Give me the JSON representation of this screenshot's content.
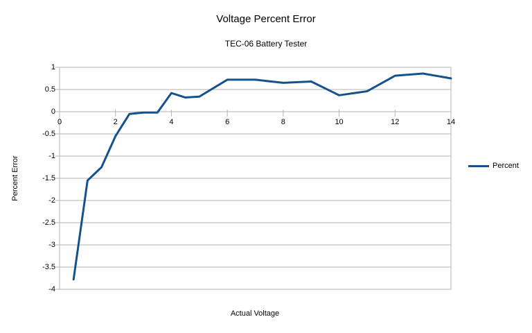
{
  "chart_data": {
    "type": "line",
    "title": "Voltage Percent Error",
    "subtitle": "TEC-06 Battery Tester",
    "xlabel": "Actual Voltage",
    "ylabel": "Percent Error",
    "xlim": [
      0,
      14
    ],
    "ylim": [
      -4,
      1
    ],
    "grid": "horizontal gridlines every 0.5, no vertical gridlines",
    "legend_position": "right-center",
    "x_ticks": [
      {
        "value": 0,
        "label": "0"
      },
      {
        "value": 2,
        "label": "2"
      },
      {
        "value": 4,
        "label": "4"
      },
      {
        "value": 6,
        "label": "6"
      },
      {
        "value": 8,
        "label": "8"
      },
      {
        "value": 10,
        "label": "10"
      },
      {
        "value": 12,
        "label": "12"
      },
      {
        "value": 14,
        "label": "14"
      }
    ],
    "y_ticks": [
      {
        "value": 1,
        "label": "1"
      },
      {
        "value": 0.5,
        "label": "0.5"
      },
      {
        "value": 0,
        "label": "0"
      },
      {
        "value": -0.5,
        "label": "-0.5"
      },
      {
        "value": -1,
        "label": "-1"
      },
      {
        "value": -1.5,
        "label": "-1.5"
      },
      {
        "value": -2,
        "label": "-2"
      },
      {
        "value": -2.5,
        "label": "-2.5"
      },
      {
        "value": -3,
        "label": "-3"
      },
      {
        "value": -3.5,
        "label": "-3.5"
      },
      {
        "value": -4,
        "label": "-4"
      }
    ],
    "series": [
      {
        "name": "Percent",
        "color": "#15528C",
        "x": [
          0.5,
          1,
          1.5,
          2,
          2.5,
          3,
          3.5,
          4,
          4.5,
          5,
          6,
          7,
          8,
          9,
          10,
          11,
          12,
          13,
          14
        ],
        "y": [
          -3.78,
          -1.55,
          -1.25,
          -0.55,
          -0.05,
          -0.02,
          -0.02,
          0.42,
          0.32,
          0.34,
          0.72,
          0.72,
          0.65,
          0.68,
          0.37,
          0.46,
          0.81,
          0.86,
          0.75
        ]
      }
    ],
    "styles": {
      "background": "#ffffff",
      "grid_color": "#b3b3b3",
      "border_color": "#b3b3b3",
      "text_color": "#000000",
      "line_width": 3
    }
  }
}
